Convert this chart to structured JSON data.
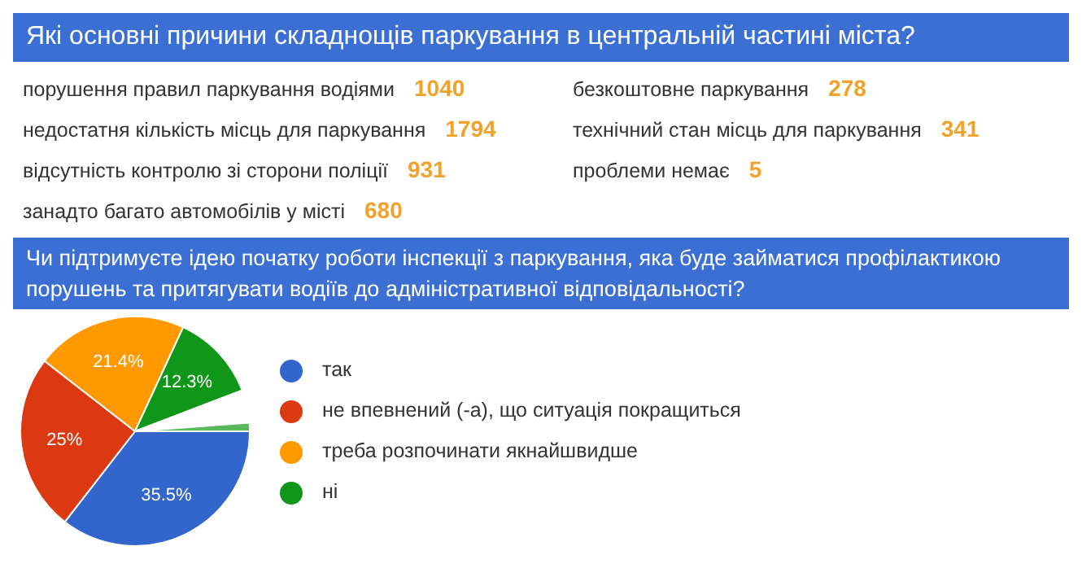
{
  "chart_data": [
    {
      "type": "other",
      "title": "Які основні причини складнощів паркування в центральній частині міста?",
      "categories": [
        "порушення правил паркування водіями",
        "недостатня кількість місць для паркування",
        "відсутність контролю зі сторони поліції",
        "занадто багато автомобілів у місті",
        "безкоштовне паркування",
        "технічний стан місць для паркування",
        "проблеми немає"
      ],
      "values": [
        1040,
        1794,
        931,
        680,
        278,
        341,
        5
      ],
      "color": "#f0a22a",
      "data_labels": true
    },
    {
      "type": "pie",
      "title": "Чи підтримуєте ідею початку роботи інспекції з паркування, яка буде займатися профілактикою порушень та притягувати водіїв до адміністративної відповідальності?",
      "categories": [
        "так",
        "не впевнений (-а), що ситуація покращиться",
        "треба розпочинати якнайшвидше",
        "ні",
        null,
        null
      ],
      "values": [
        35.5,
        25,
        21.4,
        12.3,
        4.6,
        1.2
      ],
      "colors": [
        "#3366cc",
        "#dc3912",
        "#ff9900",
        "#109618",
        "#ffffff",
        "#5cb85c"
      ],
      "value_labels": [
        "35.5%",
        "25%",
        "21.4%",
        "12.3%",
        null,
        null
      ],
      "legend": "right"
    }
  ]
}
